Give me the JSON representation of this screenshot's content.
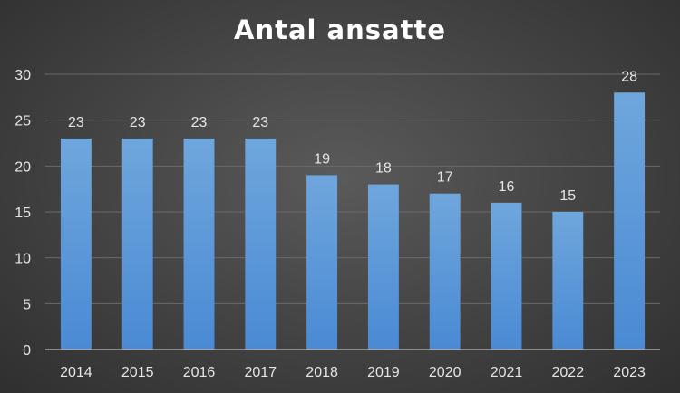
{
  "chart_data": {
    "type": "bar",
    "title": "Antal ansatte",
    "xlabel": "",
    "ylabel": "",
    "categories": [
      "2014",
      "2015",
      "2016",
      "2017",
      "2018",
      "2019",
      "2020",
      "2021",
      "2022",
      "2023"
    ],
    "values": [
      23,
      23,
      23,
      23,
      19,
      18,
      17,
      16,
      15,
      28
    ],
    "ylim": [
      0,
      30
    ],
    "yticks": [
      0,
      5,
      10,
      15,
      20,
      25,
      30
    ],
    "grid": true,
    "legend": "none",
    "data_labels": true,
    "colors": {
      "bar_top": "#6fa6dc",
      "bar_bottom": "#4a8ad4",
      "background_center": "#5a5a5a",
      "background_edge": "#2f2f2f",
      "text": "#e6e6e6"
    }
  }
}
